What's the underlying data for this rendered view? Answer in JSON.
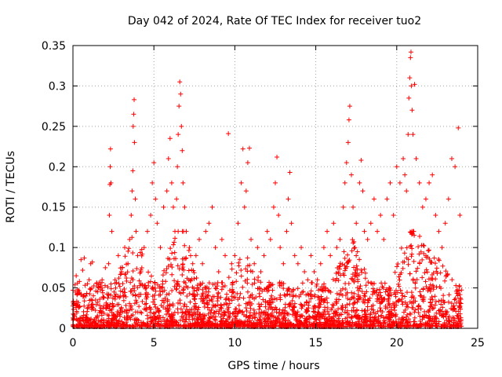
{
  "chart_data": {
    "type": "scatter",
    "title": "Day 042 of 2024, Rate Of TEC Index for receiver tuo2",
    "xlabel": "GPS time / hours",
    "ylabel": "ROTI / TECUs",
    "xlim": [
      0,
      25
    ],
    "ylim": [
      0,
      0.35
    ],
    "xticks": [
      "0",
      "5",
      "10",
      "15",
      "20",
      "25"
    ],
    "yticks": [
      "0",
      "0.05",
      "0.1",
      "0.15",
      "0.2",
      "0.25",
      "0.3",
      "0.35"
    ],
    "grid": true,
    "marker": "plus",
    "color": "#ff0000",
    "series": [
      {
        "points": [
          [
            0.05,
            0.03
          ],
          [
            0.1,
            0.015
          ],
          [
            0.15,
            0.045
          ],
          [
            0.2,
            0.065
          ],
          [
            0.3,
            0.028
          ],
          [
            0.4,
            0.058
          ],
          [
            0.5,
            0.085
          ],
          [
            0.6,
            0.072
          ],
          [
            0.7,
            0.087
          ],
          [
            0.8,
            0.04
          ],
          [
            0.9,
            0.055
          ],
          [
            1.0,
            0.06
          ],
          [
            1.1,
            0.08
          ],
          [
            1.2,
            0.082
          ],
          [
            1.4,
            0.035
          ],
          [
            1.6,
            0.05
          ],
          [
            1.8,
            0.06
          ],
          [
            2.0,
            0.075
          ],
          [
            2.2,
            0.08
          ],
          [
            2.25,
            0.14
          ],
          [
            2.28,
            0.178
          ],
          [
            2.3,
            0.2
          ],
          [
            2.32,
            0.222
          ],
          [
            2.35,
            0.18
          ],
          [
            2.4,
            0.12
          ],
          [
            2.6,
            0.06
          ],
          [
            2.8,
            0.09
          ],
          [
            3.0,
            0.07
          ],
          [
            3.2,
            0.1
          ],
          [
            3.4,
            0.08
          ],
          [
            3.5,
            0.11
          ],
          [
            3.6,
            0.14
          ],
          [
            3.65,
            0.17
          ],
          [
            3.7,
            0.195
          ],
          [
            3.72,
            0.25
          ],
          [
            3.75,
            0.265
          ],
          [
            3.78,
            0.283
          ],
          [
            3.8,
            0.23
          ],
          [
            3.85,
            0.16
          ],
          [
            3.9,
            0.12
          ],
          [
            4.0,
            0.09
          ],
          [
            4.2,
            0.07
          ],
          [
            4.4,
            0.1
          ],
          [
            4.6,
            0.12
          ],
          [
            4.8,
            0.14
          ],
          [
            4.9,
            0.18
          ],
          [
            5.0,
            0.205
          ],
          [
            5.1,
            0.16
          ],
          [
            5.2,
            0.13
          ],
          [
            5.4,
            0.1
          ],
          [
            5.6,
            0.15
          ],
          [
            5.8,
            0.17
          ],
          [
            5.9,
            0.21
          ],
          [
            6.0,
            0.235
          ],
          [
            6.1,
            0.18
          ],
          [
            6.2,
            0.15
          ],
          [
            6.3,
            0.12
          ],
          [
            6.4,
            0.16
          ],
          [
            6.45,
            0.2
          ],
          [
            6.5,
            0.24
          ],
          [
            6.55,
            0.275
          ],
          [
            6.6,
            0.305
          ],
          [
            6.65,
            0.29
          ],
          [
            6.7,
            0.25
          ],
          [
            6.75,
            0.22
          ],
          [
            6.8,
            0.18
          ],
          [
            6.9,
            0.15
          ],
          [
            7.0,
            0.12
          ],
          [
            7.2,
            0.1
          ],
          [
            7.4,
            0.08
          ],
          [
            7.6,
            0.09
          ],
          [
            7.8,
            0.11
          ],
          [
            8.0,
            0.08
          ],
          [
            8.2,
            0.12
          ],
          [
            8.4,
            0.13
          ],
          [
            8.6,
            0.15
          ],
          [
            8.8,
            0.1
          ],
          [
            9.0,
            0.07
          ],
          [
            9.2,
            0.11
          ],
          [
            9.4,
            0.09
          ],
          [
            9.6,
            0.241
          ],
          [
            9.8,
            0.08
          ],
          [
            10.0,
            0.09
          ],
          [
            10.2,
            0.13
          ],
          [
            10.4,
            0.18
          ],
          [
            10.5,
            0.222
          ],
          [
            10.6,
            0.15
          ],
          [
            10.7,
            0.17
          ],
          [
            10.8,
            0.205
          ],
          [
            10.9,
            0.223
          ],
          [
            11.0,
            0.11
          ],
          [
            11.2,
            0.08
          ],
          [
            11.4,
            0.1
          ],
          [
            11.6,
            0.07
          ],
          [
            11.8,
            0.09
          ],
          [
            12.0,
            0.12
          ],
          [
            12.2,
            0.11
          ],
          [
            12.4,
            0.15
          ],
          [
            12.5,
            0.18
          ],
          [
            12.6,
            0.212
          ],
          [
            12.7,
            0.14
          ],
          [
            12.8,
            0.1
          ],
          [
            13.0,
            0.08
          ],
          [
            13.2,
            0.12
          ],
          [
            13.3,
            0.16
          ],
          [
            13.4,
            0.193
          ],
          [
            13.5,
            0.13
          ],
          [
            13.7,
            0.09
          ],
          [
            13.9,
            0.08
          ],
          [
            14.1,
            0.1
          ],
          [
            14.3,
            0.07
          ],
          [
            14.5,
            0.06
          ],
          [
            14.7,
            0.09
          ],
          [
            14.9,
            0.07
          ],
          [
            15.1,
            0.06
          ],
          [
            15.3,
            0.08
          ],
          [
            15.5,
            0.1
          ],
          [
            15.7,
            0.12
          ],
          [
            15.9,
            0.09
          ],
          [
            16.1,
            0.13
          ],
          [
            16.3,
            0.1
          ],
          [
            16.5,
            0.11
          ],
          [
            16.7,
            0.15
          ],
          [
            16.8,
            0.18
          ],
          [
            16.9,
            0.205
          ],
          [
            17.0,
            0.23
          ],
          [
            17.05,
            0.258
          ],
          [
            17.1,
            0.275
          ],
          [
            17.2,
            0.19
          ],
          [
            17.3,
            0.15
          ],
          [
            17.5,
            0.13
          ],
          [
            17.7,
            0.18
          ],
          [
            17.8,
            0.208
          ],
          [
            17.9,
            0.17
          ],
          [
            18.0,
            0.12
          ],
          [
            18.2,
            0.11
          ],
          [
            18.4,
            0.13
          ],
          [
            18.6,
            0.16
          ],
          [
            18.8,
            0.12
          ],
          [
            19.0,
            0.14
          ],
          [
            19.2,
            0.11
          ],
          [
            19.4,
            0.16
          ],
          [
            19.6,
            0.18
          ],
          [
            19.8,
            0.14
          ],
          [
            20.0,
            0.2
          ],
          [
            20.2,
            0.18
          ],
          [
            20.4,
            0.21
          ],
          [
            20.5,
            0.19
          ],
          [
            20.6,
            0.17
          ],
          [
            20.7,
            0.24
          ],
          [
            20.75,
            0.285
          ],
          [
            20.8,
            0.31
          ],
          [
            20.85,
            0.335
          ],
          [
            20.88,
            0.342
          ],
          [
            20.9,
            0.3
          ],
          [
            20.95,
            0.27
          ],
          [
            21.0,
            0.24
          ],
          [
            21.1,
            0.302
          ],
          [
            21.2,
            0.21
          ],
          [
            21.4,
            0.18
          ],
          [
            21.6,
            0.15
          ],
          [
            21.8,
            0.16
          ],
          [
            22.0,
            0.18
          ],
          [
            22.2,
            0.19
          ],
          [
            22.4,
            0.14
          ],
          [
            22.6,
            0.12
          ],
          [
            22.8,
            0.1
          ],
          [
            23.0,
            0.13
          ],
          [
            23.2,
            0.16
          ],
          [
            23.4,
            0.21
          ],
          [
            23.6,
            0.2
          ],
          [
            23.8,
            0.248
          ],
          [
            23.9,
            0.14
          ]
        ]
      }
    ]
  }
}
